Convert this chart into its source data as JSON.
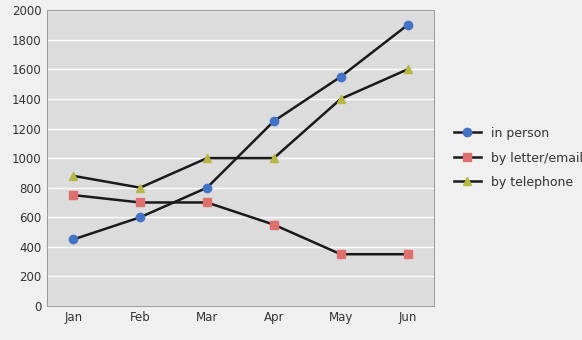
{
  "months": [
    "Jan",
    "Feb",
    "Mar",
    "Apr",
    "May",
    "Jun"
  ],
  "in_person": [
    450,
    600,
    800,
    1250,
    1550,
    1900
  ],
  "by_letter_email": [
    750,
    700,
    700,
    550,
    350,
    350
  ],
  "by_telephone": [
    880,
    800,
    1000,
    1000,
    1400,
    1600
  ],
  "line_color": "#1a1a1a",
  "marker_in_person": "o",
  "marker_letter": "s",
  "marker_telephone": "^",
  "marker_color_in_person": "#4472c4",
  "marker_color_letter": "#e07070",
  "marker_color_telephone": "#b5b842",
  "legend_labels": [
    "in person",
    "by letter/email",
    "by telephone"
  ],
  "ylim": [
    0,
    2000
  ],
  "yticks": [
    0,
    200,
    400,
    600,
    800,
    1000,
    1200,
    1400,
    1600,
    1800,
    2000
  ],
  "plot_bg_color": "#dcdcdc",
  "fig_bg_color": "#f0f0f0",
  "legend_bg_color": "#ffffff",
  "grid_color": "#ffffff",
  "tick_label_color": "#333333",
  "spine_color": "#999999"
}
